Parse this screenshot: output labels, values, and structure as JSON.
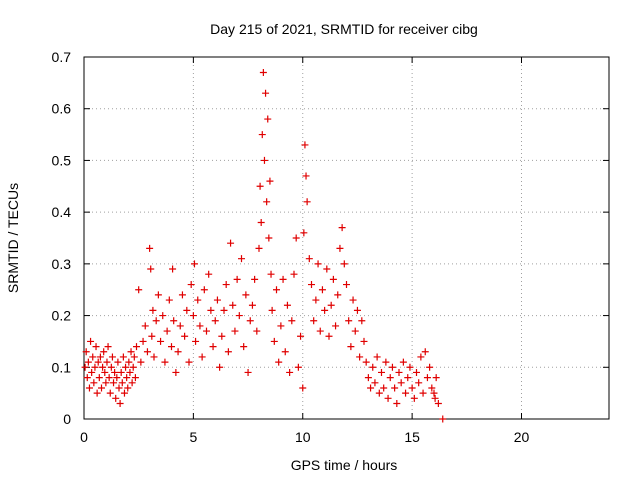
{
  "chart_data": {
    "type": "scatter",
    "title": "Day 215 of 2021, SRMTID for receiver cibg",
    "xlabel": "GPS time / hours",
    "ylabel": "SRMTID / TECUs",
    "xlim": [
      0,
      24
    ],
    "ylim": [
      0,
      0.7
    ],
    "xticks": [
      0,
      5,
      10,
      15,
      20
    ],
    "yticks": [
      0,
      0.1,
      0.2,
      0.3,
      0.4,
      0.5,
      0.6,
      0.7
    ],
    "xtick_labels": [
      "0",
      "5",
      "10",
      "15",
      "20"
    ],
    "ytick_labels": [
      "0",
      "0.1",
      "0.2",
      "0.3",
      "0.4",
      "0.5",
      "0.6",
      "0.7"
    ],
    "grid": true,
    "marker": "+",
    "color": "#e00000",
    "series": [
      {
        "name": "SRMTID",
        "points": [
          [
            0.05,
            0.1
          ],
          [
            0.1,
            0.13
          ],
          [
            0.15,
            0.08
          ],
          [
            0.2,
            0.11
          ],
          [
            0.25,
            0.06
          ],
          [
            0.3,
            0.15
          ],
          [
            0.35,
            0.09
          ],
          [
            0.4,
            0.12
          ],
          [
            0.45,
            0.07
          ],
          [
            0.5,
            0.1
          ],
          [
            0.55,
            0.14
          ],
          [
            0.6,
            0.05
          ],
          [
            0.65,
            0.11
          ],
          [
            0.7,
            0.08
          ],
          [
            0.75,
            0.12
          ],
          [
            0.8,
            0.06
          ],
          [
            0.85,
            0.1
          ],
          [
            0.9,
            0.13
          ],
          [
            0.95,
            0.09
          ],
          [
            1.0,
            0.07
          ],
          [
            1.05,
            0.11
          ],
          [
            1.1,
            0.14
          ],
          [
            1.15,
            0.08
          ],
          [
            1.2,
            0.05
          ],
          [
            1.25,
            0.1
          ],
          [
            1.3,
            0.12
          ],
          [
            1.35,
            0.07
          ],
          [
            1.4,
            0.09
          ],
          [
            1.45,
            0.04
          ],
          [
            1.5,
            0.08
          ],
          [
            1.55,
            0.11
          ],
          [
            1.6,
            0.06
          ],
          [
            1.65,
            0.03
          ],
          [
            1.7,
            0.09
          ],
          [
            1.75,
            0.07
          ],
          [
            1.8,
            0.12
          ],
          [
            1.85,
            0.05
          ],
          [
            1.9,
            0.1
          ],
          [
            1.95,
            0.08
          ],
          [
            2.0,
            0.06
          ],
          [
            2.05,
            0.11
          ],
          [
            2.1,
            0.09
          ],
          [
            2.15,
            0.13
          ],
          [
            2.2,
            0.07
          ],
          [
            2.25,
            0.1
          ],
          [
            2.3,
            0.12
          ],
          [
            2.35,
            0.08
          ],
          [
            2.4,
            0.14
          ],
          [
            2.5,
            0.25
          ],
          [
            2.6,
            0.11
          ],
          [
            2.7,
            0.15
          ],
          [
            2.8,
            0.18
          ],
          [
            2.9,
            0.13
          ],
          [
            3.0,
            0.33
          ],
          [
            3.05,
            0.29
          ],
          [
            3.1,
            0.16
          ],
          [
            3.15,
            0.21
          ],
          [
            3.2,
            0.12
          ],
          [
            3.3,
            0.19
          ],
          [
            3.4,
            0.24
          ],
          [
            3.5,
            0.15
          ],
          [
            3.6,
            0.2
          ],
          [
            3.7,
            0.11
          ],
          [
            3.8,
            0.17
          ],
          [
            3.9,
            0.23
          ],
          [
            4.0,
            0.14
          ],
          [
            4.05,
            0.29
          ],
          [
            4.1,
            0.19
          ],
          [
            4.2,
            0.09
          ],
          [
            4.3,
            0.13
          ],
          [
            4.4,
            0.18
          ],
          [
            4.5,
            0.24
          ],
          [
            4.6,
            0.16
          ],
          [
            4.7,
            0.21
          ],
          [
            4.8,
            0.11
          ],
          [
            4.9,
            0.26
          ],
          [
            5.0,
            0.2
          ],
          [
            5.05,
            0.3
          ],
          [
            5.1,
            0.15
          ],
          [
            5.2,
            0.23
          ],
          [
            5.3,
            0.18
          ],
          [
            5.4,
            0.12
          ],
          [
            5.5,
            0.25
          ],
          [
            5.6,
            0.17
          ],
          [
            5.7,
            0.28
          ],
          [
            5.8,
            0.21
          ],
          [
            5.9,
            0.14
          ],
          [
            6.0,
            0.19
          ],
          [
            6.1,
            0.23
          ],
          [
            6.2,
            0.1
          ],
          [
            6.3,
            0.16
          ],
          [
            6.4,
            0.21
          ],
          [
            6.5,
            0.26
          ],
          [
            6.6,
            0.13
          ],
          [
            6.7,
            0.34
          ],
          [
            6.8,
            0.22
          ],
          [
            6.9,
            0.17
          ],
          [
            7.0,
            0.27
          ],
          [
            7.1,
            0.2
          ],
          [
            7.2,
            0.31
          ],
          [
            7.3,
            0.14
          ],
          [
            7.4,
            0.24
          ],
          [
            7.5,
            0.09
          ],
          [
            7.6,
            0.19
          ],
          [
            7.7,
            0.22
          ],
          [
            7.8,
            0.27
          ],
          [
            7.9,
            0.17
          ],
          [
            8.0,
            0.33
          ],
          [
            8.05,
            0.45
          ],
          [
            8.1,
            0.38
          ],
          [
            8.15,
            0.55
          ],
          [
            8.2,
            0.67
          ],
          [
            8.25,
            0.5
          ],
          [
            8.3,
            0.63
          ],
          [
            8.35,
            0.42
          ],
          [
            8.4,
            0.58
          ],
          [
            8.45,
            0.35
          ],
          [
            8.5,
            0.46
          ],
          [
            8.55,
            0.28
          ],
          [
            8.6,
            0.21
          ],
          [
            8.7,
            0.15
          ],
          [
            8.8,
            0.25
          ],
          [
            8.9,
            0.11
          ],
          [
            9.0,
            0.18
          ],
          [
            9.1,
            0.27
          ],
          [
            9.2,
            0.13
          ],
          [
            9.3,
            0.22
          ],
          [
            9.4,
            0.09
          ],
          [
            9.5,
            0.19
          ],
          [
            9.6,
            0.28
          ],
          [
            9.7,
            0.35
          ],
          [
            9.8,
            0.1
          ],
          [
            9.9,
            0.16
          ],
          [
            10.0,
            0.06
          ],
          [
            10.05,
            0.36
          ],
          [
            10.1,
            0.53
          ],
          [
            10.15,
            0.47
          ],
          [
            10.2,
            0.42
          ],
          [
            10.3,
            0.31
          ],
          [
            10.4,
            0.26
          ],
          [
            10.5,
            0.19
          ],
          [
            10.6,
            0.23
          ],
          [
            10.7,
            0.3
          ],
          [
            10.8,
            0.17
          ],
          [
            10.9,
            0.25
          ],
          [
            11.0,
            0.21
          ],
          [
            11.1,
            0.29
          ],
          [
            11.2,
            0.16
          ],
          [
            11.3,
            0.22
          ],
          [
            11.4,
            0.27
          ],
          [
            11.5,
            0.18
          ],
          [
            11.6,
            0.24
          ],
          [
            11.7,
            0.33
          ],
          [
            11.8,
            0.37
          ],
          [
            11.9,
            0.3
          ],
          [
            12.0,
            0.26
          ],
          [
            12.1,
            0.19
          ],
          [
            12.2,
            0.14
          ],
          [
            12.3,
            0.23
          ],
          [
            12.4,
            0.17
          ],
          [
            12.5,
            0.21
          ],
          [
            12.6,
            0.12
          ],
          [
            12.7,
            0.19
          ],
          [
            12.8,
            0.15
          ],
          [
            12.9,
            0.11
          ],
          [
            13.0,
            0.08
          ],
          [
            13.1,
            0.06
          ],
          [
            13.2,
            0.1
          ],
          [
            13.3,
            0.07
          ],
          [
            13.4,
            0.12
          ],
          [
            13.5,
            0.05
          ],
          [
            13.6,
            0.09
          ],
          [
            13.7,
            0.06
          ],
          [
            13.8,
            0.11
          ],
          [
            13.9,
            0.04
          ],
          [
            14.0,
            0.08
          ],
          [
            14.1,
            0.1
          ],
          [
            14.2,
            0.06
          ],
          [
            14.3,
            0.03
          ],
          [
            14.4,
            0.09
          ],
          [
            14.5,
            0.07
          ],
          [
            14.6,
            0.11
          ],
          [
            14.7,
            0.05
          ],
          [
            14.8,
            0.08
          ],
          [
            14.9,
            0.1
          ],
          [
            15.0,
            0.06
          ],
          [
            15.1,
            0.04
          ],
          [
            15.2,
            0.09
          ],
          [
            15.3,
            0.07
          ],
          [
            15.4,
            0.12
          ],
          [
            15.5,
            0.05
          ],
          [
            15.6,
            0.13
          ],
          [
            15.7,
            0.08
          ],
          [
            15.8,
            0.1
          ],
          [
            15.9,
            0.06
          ],
          [
            16.0,
            0.05
          ],
          [
            16.05,
            0.04
          ],
          [
            16.1,
            0.08
          ],
          [
            16.2,
            0.03
          ],
          [
            16.4,
            0.0
          ]
        ]
      }
    ]
  }
}
